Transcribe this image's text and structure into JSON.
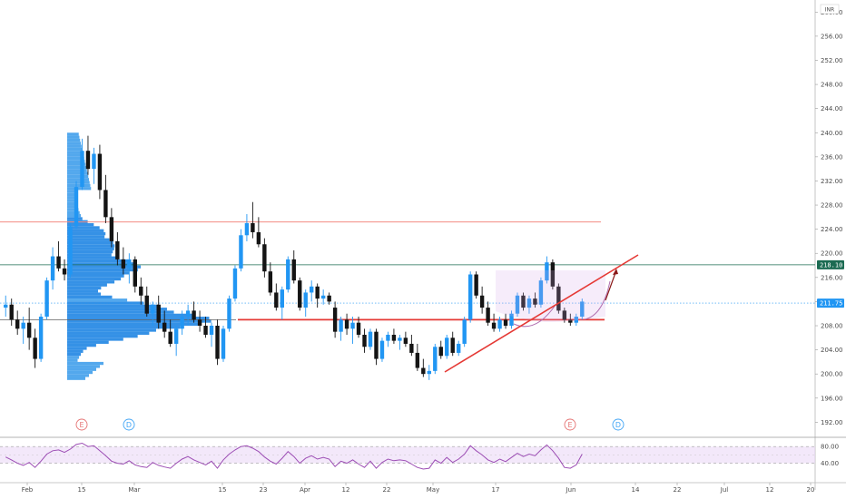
{
  "chart_data": {
    "type": "candlestick",
    "currency": "INR",
    "y_axis": {
      "range": [
        189.5,
        262
      ],
      "ticks": [
        "260.00",
        "256.00",
        "252.00",
        "248.00",
        "244.00",
        "240.00",
        "236.00",
        "232.00",
        "228.00",
        "224.00",
        "220.00",
        "216.00",
        "212.00",
        "208.00",
        "204.00",
        "200.00",
        "196.00",
        "192.00"
      ]
    },
    "x_axis": {
      "ticks": [
        "Feb",
        "15",
        "Mar",
        "15",
        "23",
        "Apr",
        "12",
        "22",
        "May",
        "17",
        "Jun",
        "14",
        "22",
        "Jul",
        "12",
        "20"
      ]
    },
    "price_labels": [
      {
        "value": "218.10",
        "color": "#1b6b52"
      },
      {
        "value": "211.75",
        "color": "#2196f3"
      }
    ],
    "levels": [
      {
        "name": "resistance",
        "price": 225.2,
        "color": "#f28b82"
      },
      {
        "name": "support",
        "price": 209.0,
        "color": "#e53935"
      },
      {
        "name": "last-high",
        "price": 218.1,
        "color": "#1b6b52"
      },
      {
        "name": "last-price",
        "price": 211.75,
        "color": "#2196f3"
      }
    ],
    "candles": [
      [
        211.0,
        213.0,
        209.5,
        211.5
      ],
      [
        211.5,
        212.5,
        208.0,
        209.0
      ],
      [
        209.0,
        210.5,
        206.5,
        207.5
      ],
      [
        207.5,
        209.5,
        205.0,
        208.5
      ],
      [
        208.5,
        211.0,
        204.0,
        206.0
      ],
      [
        206.0,
        207.5,
        201.0,
        202.5
      ],
      [
        202.5,
        210.0,
        202.0,
        209.5
      ],
      [
        209.5,
        216.0,
        209.0,
        215.5
      ],
      [
        215.5,
        221.0,
        214.0,
        219.5
      ],
      [
        219.5,
        222.0,
        217.0,
        217.5
      ],
      [
        217.5,
        219.0,
        215.5,
        216.5
      ],
      [
        216.5,
        225.0,
        216.0,
        224.5
      ],
      [
        224.5,
        232.0,
        224.0,
        231.0
      ],
      [
        231.0,
        239.0,
        230.5,
        237.0
      ],
      [
        237.0,
        239.5,
        233.0,
        234.0
      ],
      [
        234.0,
        237.5,
        231.5,
        236.5
      ],
      [
        236.5,
        238.0,
        229.0,
        230.5
      ],
      [
        230.5,
        233.0,
        225.0,
        226.0
      ],
      [
        226.0,
        227.5,
        221.0,
        222.0
      ],
      [
        222.0,
        223.5,
        218.0,
        219.0
      ],
      [
        219.0,
        221.0,
        216.5,
        217.5
      ],
      [
        217.5,
        220.0,
        215.0,
        219.0
      ],
      [
        219.0,
        219.5,
        213.5,
        214.5
      ],
      [
        214.5,
        216.0,
        211.5,
        213.0
      ],
      [
        213.0,
        214.5,
        209.5,
        210.0
      ],
      [
        210.0,
        212.0,
        208.0,
        211.5
      ],
      [
        211.5,
        213.0,
        207.5,
        208.5
      ],
      [
        208.5,
        210.5,
        206.0,
        207.0
      ],
      [
        207.0,
        209.0,
        204.5,
        205.0
      ],
      [
        205.0,
        208.0,
        203.0,
        207.5
      ],
      [
        207.5,
        210.5,
        206.5,
        209.5
      ],
      [
        209.5,
        211.5,
        208.0,
        210.5
      ],
      [
        210.5,
        212.0,
        208.5,
        209.0
      ],
      [
        209.0,
        210.5,
        207.0,
        208.0
      ],
      [
        208.0,
        209.5,
        206.0,
        206.5
      ],
      [
        206.5,
        208.5,
        204.5,
        208.0
      ],
      [
        208.0,
        209.0,
        201.5,
        202.5
      ],
      [
        202.5,
        208.0,
        202.0,
        207.5
      ],
      [
        207.5,
        213.0,
        207.0,
        212.5
      ],
      [
        212.5,
        218.0,
        212.0,
        217.5
      ],
      [
        217.5,
        224.0,
        217.0,
        223.0
      ],
      [
        223.0,
        226.5,
        222.0,
        225.0
      ],
      [
        225.0,
        228.5,
        222.5,
        223.5
      ],
      [
        223.5,
        226.0,
        221.0,
        221.5
      ],
      [
        221.5,
        222.5,
        216.0,
        217.0
      ],
      [
        217.0,
        218.5,
        213.0,
        213.5
      ],
      [
        213.5,
        215.0,
        210.5,
        211.0
      ],
      [
        211.0,
        214.5,
        209.0,
        214.0
      ],
      [
        214.0,
        219.5,
        213.5,
        219.0
      ],
      [
        219.0,
        220.5,
        215.0,
        215.5
      ],
      [
        215.5,
        216.0,
        210.5,
        211.0
      ],
      [
        211.0,
        214.0,
        209.5,
        213.5
      ],
      [
        213.5,
        215.5,
        212.0,
        214.5
      ],
      [
        214.5,
        215.0,
        211.0,
        212.5
      ],
      [
        212.5,
        214.0,
        211.5,
        213.0
      ],
      [
        213.0,
        213.5,
        211.5,
        212.0
      ],
      [
        211.0,
        212.0,
        206.0,
        207.0
      ],
      [
        207.0,
        209.5,
        205.5,
        209.0
      ],
      [
        209.0,
        210.0,
        206.5,
        207.5
      ],
      [
        207.5,
        209.5,
        205.0,
        208.5
      ],
      [
        208.5,
        209.5,
        206.0,
        206.5
      ],
      [
        206.5,
        207.5,
        203.5,
        204.5
      ],
      [
        204.5,
        207.5,
        204.0,
        207.0
      ],
      [
        207.0,
        207.5,
        201.5,
        202.5
      ],
      [
        202.5,
        206.0,
        202.0,
        205.5
      ],
      [
        205.5,
        207.0,
        204.5,
        206.5
      ],
      [
        206.5,
        207.5,
        205.0,
        205.5
      ],
      [
        205.5,
        206.5,
        204.0,
        206.0
      ],
      [
        206.0,
        207.0,
        204.5,
        205.0
      ],
      [
        205.0,
        206.5,
        203.0,
        203.5
      ],
      [
        203.5,
        205.0,
        200.5,
        201.0
      ],
      [
        201.0,
        202.5,
        199.5,
        200.0
      ],
      [
        200.0,
        201.5,
        199.0,
        200.5
      ],
      [
        200.5,
        205.0,
        200.0,
        204.5
      ],
      [
        204.5,
        205.5,
        202.5,
        203.0
      ],
      [
        203.0,
        206.5,
        202.5,
        206.0
      ],
      [
        206.0,
        207.0,
        203.0,
        203.5
      ],
      [
        203.5,
        205.5,
        203.0,
        205.0
      ],
      [
        205.0,
        209.5,
        204.5,
        209.0
      ],
      [
        209.0,
        217.0,
        208.5,
        216.5
      ],
      [
        216.5,
        217.0,
        212.5,
        213.0
      ],
      [
        213.0,
        214.5,
        210.0,
        211.0
      ],
      [
        211.0,
        212.0,
        208.0,
        208.5
      ],
      [
        208.5,
        210.0,
        207.0,
        207.5
      ],
      [
        207.5,
        209.5,
        207.0,
        209.0
      ],
      [
        209.0,
        210.0,
        207.5,
        208.0
      ],
      [
        208.0,
        210.5,
        207.5,
        210.0
      ],
      [
        210.0,
        213.5,
        209.5,
        213.0
      ],
      [
        213.0,
        213.5,
        210.5,
        211.0
      ],
      [
        211.0,
        213.0,
        210.0,
        212.5
      ],
      [
        212.5,
        213.5,
        211.0,
        211.5
      ],
      [
        211.5,
        216.0,
        211.0,
        215.5
      ],
      [
        215.5,
        219.5,
        215.0,
        218.5
      ],
      [
        218.5,
        219.0,
        214.0,
        214.5
      ],
      [
        214.5,
        215.0,
        210.0,
        210.5
      ],
      [
        210.5,
        211.0,
        208.5,
        209.0
      ],
      [
        209.0,
        210.0,
        208.0,
        208.5
      ],
      [
        208.5,
        210.0,
        208.0,
        209.5
      ],
      [
        209.5,
        212.5,
        209.0,
        212.0
      ]
    ],
    "event_badges": [
      {
        "letter": "E",
        "color": "#e57373"
      },
      {
        "letter": "D",
        "color": "#42a5f5"
      },
      {
        "letter": "E",
        "color": "#e57373"
      },
      {
        "letter": "D",
        "color": "#42a5f5"
      }
    ],
    "rsi": {
      "range": [
        0,
        100
      ],
      "ticks": [
        "80.00",
        "40.00"
      ],
      "band": [
        40,
        80
      ],
      "values": [
        55,
        48,
        40,
        35,
        42,
        30,
        45,
        62,
        70,
        72,
        66,
        74,
        85,
        88,
        80,
        82,
        70,
        58,
        45,
        40,
        38,
        46,
        36,
        32,
        30,
        42,
        35,
        31,
        28,
        40,
        50,
        56,
        48,
        42,
        36,
        45,
        28,
        48,
        62,
        72,
        80,
        82,
        76,
        68,
        55,
        45,
        38,
        52,
        68,
        56,
        40,
        52,
        58,
        50,
        54,
        50,
        32,
        45,
        40,
        48,
        38,
        30,
        45,
        28,
        42,
        50,
        46,
        48,
        46,
        38,
        30,
        26,
        28,
        48,
        40,
        54,
        42,
        50,
        62,
        82,
        70,
        60,
        48,
        42,
        50,
        44,
        54,
        64,
        56,
        62,
        58,
        72,
        84,
        70,
        52,
        30,
        28,
        36,
        62
      ]
    }
  }
}
